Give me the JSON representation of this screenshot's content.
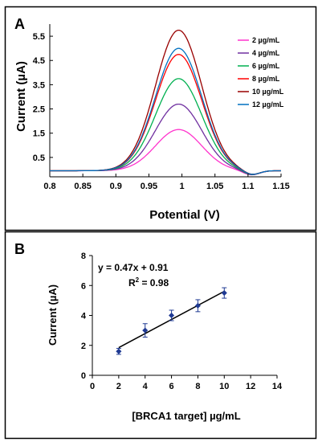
{
  "chart_data": [
    {
      "panel": "A",
      "type": "line",
      "xlabel": "Potential (V)",
      "ylabel": "Current (µA)",
      "xticks": [
        "0.8",
        "0.85",
        "0.9",
        "0.95",
        "1",
        "1.05",
        "1.1",
        "1.15"
      ],
      "yticks": [
        "0.5",
        "1.5",
        "2.5",
        "3.5",
        "4.5",
        "5.5"
      ],
      "xlim": [
        0.8,
        1.15
      ],
      "ylim": [
        -0.3,
        6.0
      ],
      "baseline": -0.05,
      "peak_potential": 0.995,
      "series": [
        {
          "name": "2 µg/mL",
          "color": "#ff33cc",
          "peak": 1.65
        },
        {
          "name": "4 µg/mL",
          "color": "#7030a0",
          "peak": 2.7
        },
        {
          "name": "6 µg/mL",
          "color": "#00b050",
          "peak": 3.75
        },
        {
          "name": "8 µg/mL",
          "color": "#ff0000",
          "peak": 4.75
        },
        {
          "name": "10 µg/mL",
          "color": "#990000",
          "peak": 5.75
        },
        {
          "name": "12 µg/mL",
          "color": "#0070c0",
          "peak": 5.0
        }
      ],
      "legend_position": "top-right",
      "grid": false
    },
    {
      "panel": "B",
      "type": "scatter",
      "xlabel": "[BRCA1 target] µg/mL",
      "ylabel": "Current (µA)",
      "xticks": [
        "0",
        "2",
        "4",
        "6",
        "8",
        "10",
        "12",
        "14"
      ],
      "yticks": [
        "0",
        "2",
        "4",
        "6",
        "8"
      ],
      "xlim": [
        0,
        14
      ],
      "ylim": [
        0,
        8
      ],
      "x": [
        2,
        4,
        6,
        8,
        10
      ],
      "y": [
        1.6,
        3.0,
        4.0,
        4.65,
        5.5
      ],
      "error": [
        0.2,
        0.45,
        0.35,
        0.4,
        0.35
      ],
      "marker_color": "#1f3a93",
      "fit": {
        "slope": 0.47,
        "intercept": 0.91,
        "x_range": [
          2,
          10
        ]
      },
      "equation": "y = 0.47x + 0.91",
      "r2_label": "R",
      "r2_sup": "2",
      "r2_value": " = 0.98",
      "grid": false
    }
  ]
}
